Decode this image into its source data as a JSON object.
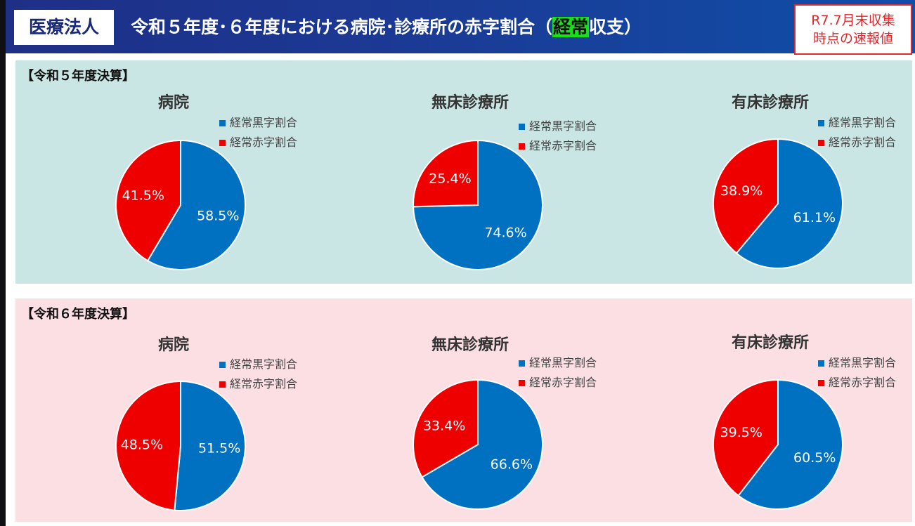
{
  "header": {
    "tag": "医療法人",
    "title_pre": "令和５年度･６年度における病院･診療所の赤字割合（",
    "title_hl": "経常",
    "title_post": "収支）",
    "note_line1": "R7.7月末収集",
    "note_line2": "時点の速報値"
  },
  "colors": {
    "blue": "#0070c0",
    "red": "#ee0000"
  },
  "legend": {
    "black": "経常黒字割合",
    "red": "経常赤字割合"
  },
  "panels": [
    {
      "title": "【令和５年度決算】",
      "charts": [
        {
          "title": "病院",
          "blue_label": "58.5%",
          "red_label": "41.5%"
        },
        {
          "title": "無床診療所",
          "blue_label": "74.6%",
          "red_label": "25.4%"
        },
        {
          "title": "有床診療所",
          "blue_label": "61.1%",
          "red_label": "38.9%"
        }
      ]
    },
    {
      "title": "【令和６年度決算】",
      "charts": [
        {
          "title": "病院",
          "blue_label": "51.5%",
          "red_label": "48.5%"
        },
        {
          "title": "無床診療所",
          "blue_label": "66.6%",
          "red_label": "33.4%"
        },
        {
          "title": "有床診療所",
          "blue_label": "60.5%",
          "red_label": "39.5%"
        }
      ]
    }
  ],
  "chart_data": [
    {
      "type": "pie",
      "title": "病院",
      "panel": "【令和５年度決算】",
      "categories": [
        "経常黒字割合",
        "経常赤字割合"
      ],
      "values": [
        58.5,
        41.5
      ]
    },
    {
      "type": "pie",
      "title": "無床診療所",
      "panel": "【令和５年度決算】",
      "categories": [
        "経常黒字割合",
        "経常赤字割合"
      ],
      "values": [
        74.6,
        25.4
      ]
    },
    {
      "type": "pie",
      "title": "有床診療所",
      "panel": "【令和５年度決算】",
      "categories": [
        "経常黒字割合",
        "経常赤字割合"
      ],
      "values": [
        61.1,
        38.9
      ]
    },
    {
      "type": "pie",
      "title": "病院",
      "panel": "【令和６年度決算】",
      "categories": [
        "経常黒字割合",
        "経常赤字割合"
      ],
      "values": [
        51.5,
        48.5
      ]
    },
    {
      "type": "pie",
      "title": "無床診療所",
      "panel": "【令和６年度決算】",
      "categories": [
        "経常黒字割合",
        "経常赤字割合"
      ],
      "values": [
        66.6,
        33.4
      ]
    },
    {
      "type": "pie",
      "title": "有床診療所",
      "panel": "【令和６年度決算】",
      "categories": [
        "経常黒字割合",
        "経常赤字割合"
      ],
      "values": [
        60.5,
        39.5
      ]
    }
  ]
}
